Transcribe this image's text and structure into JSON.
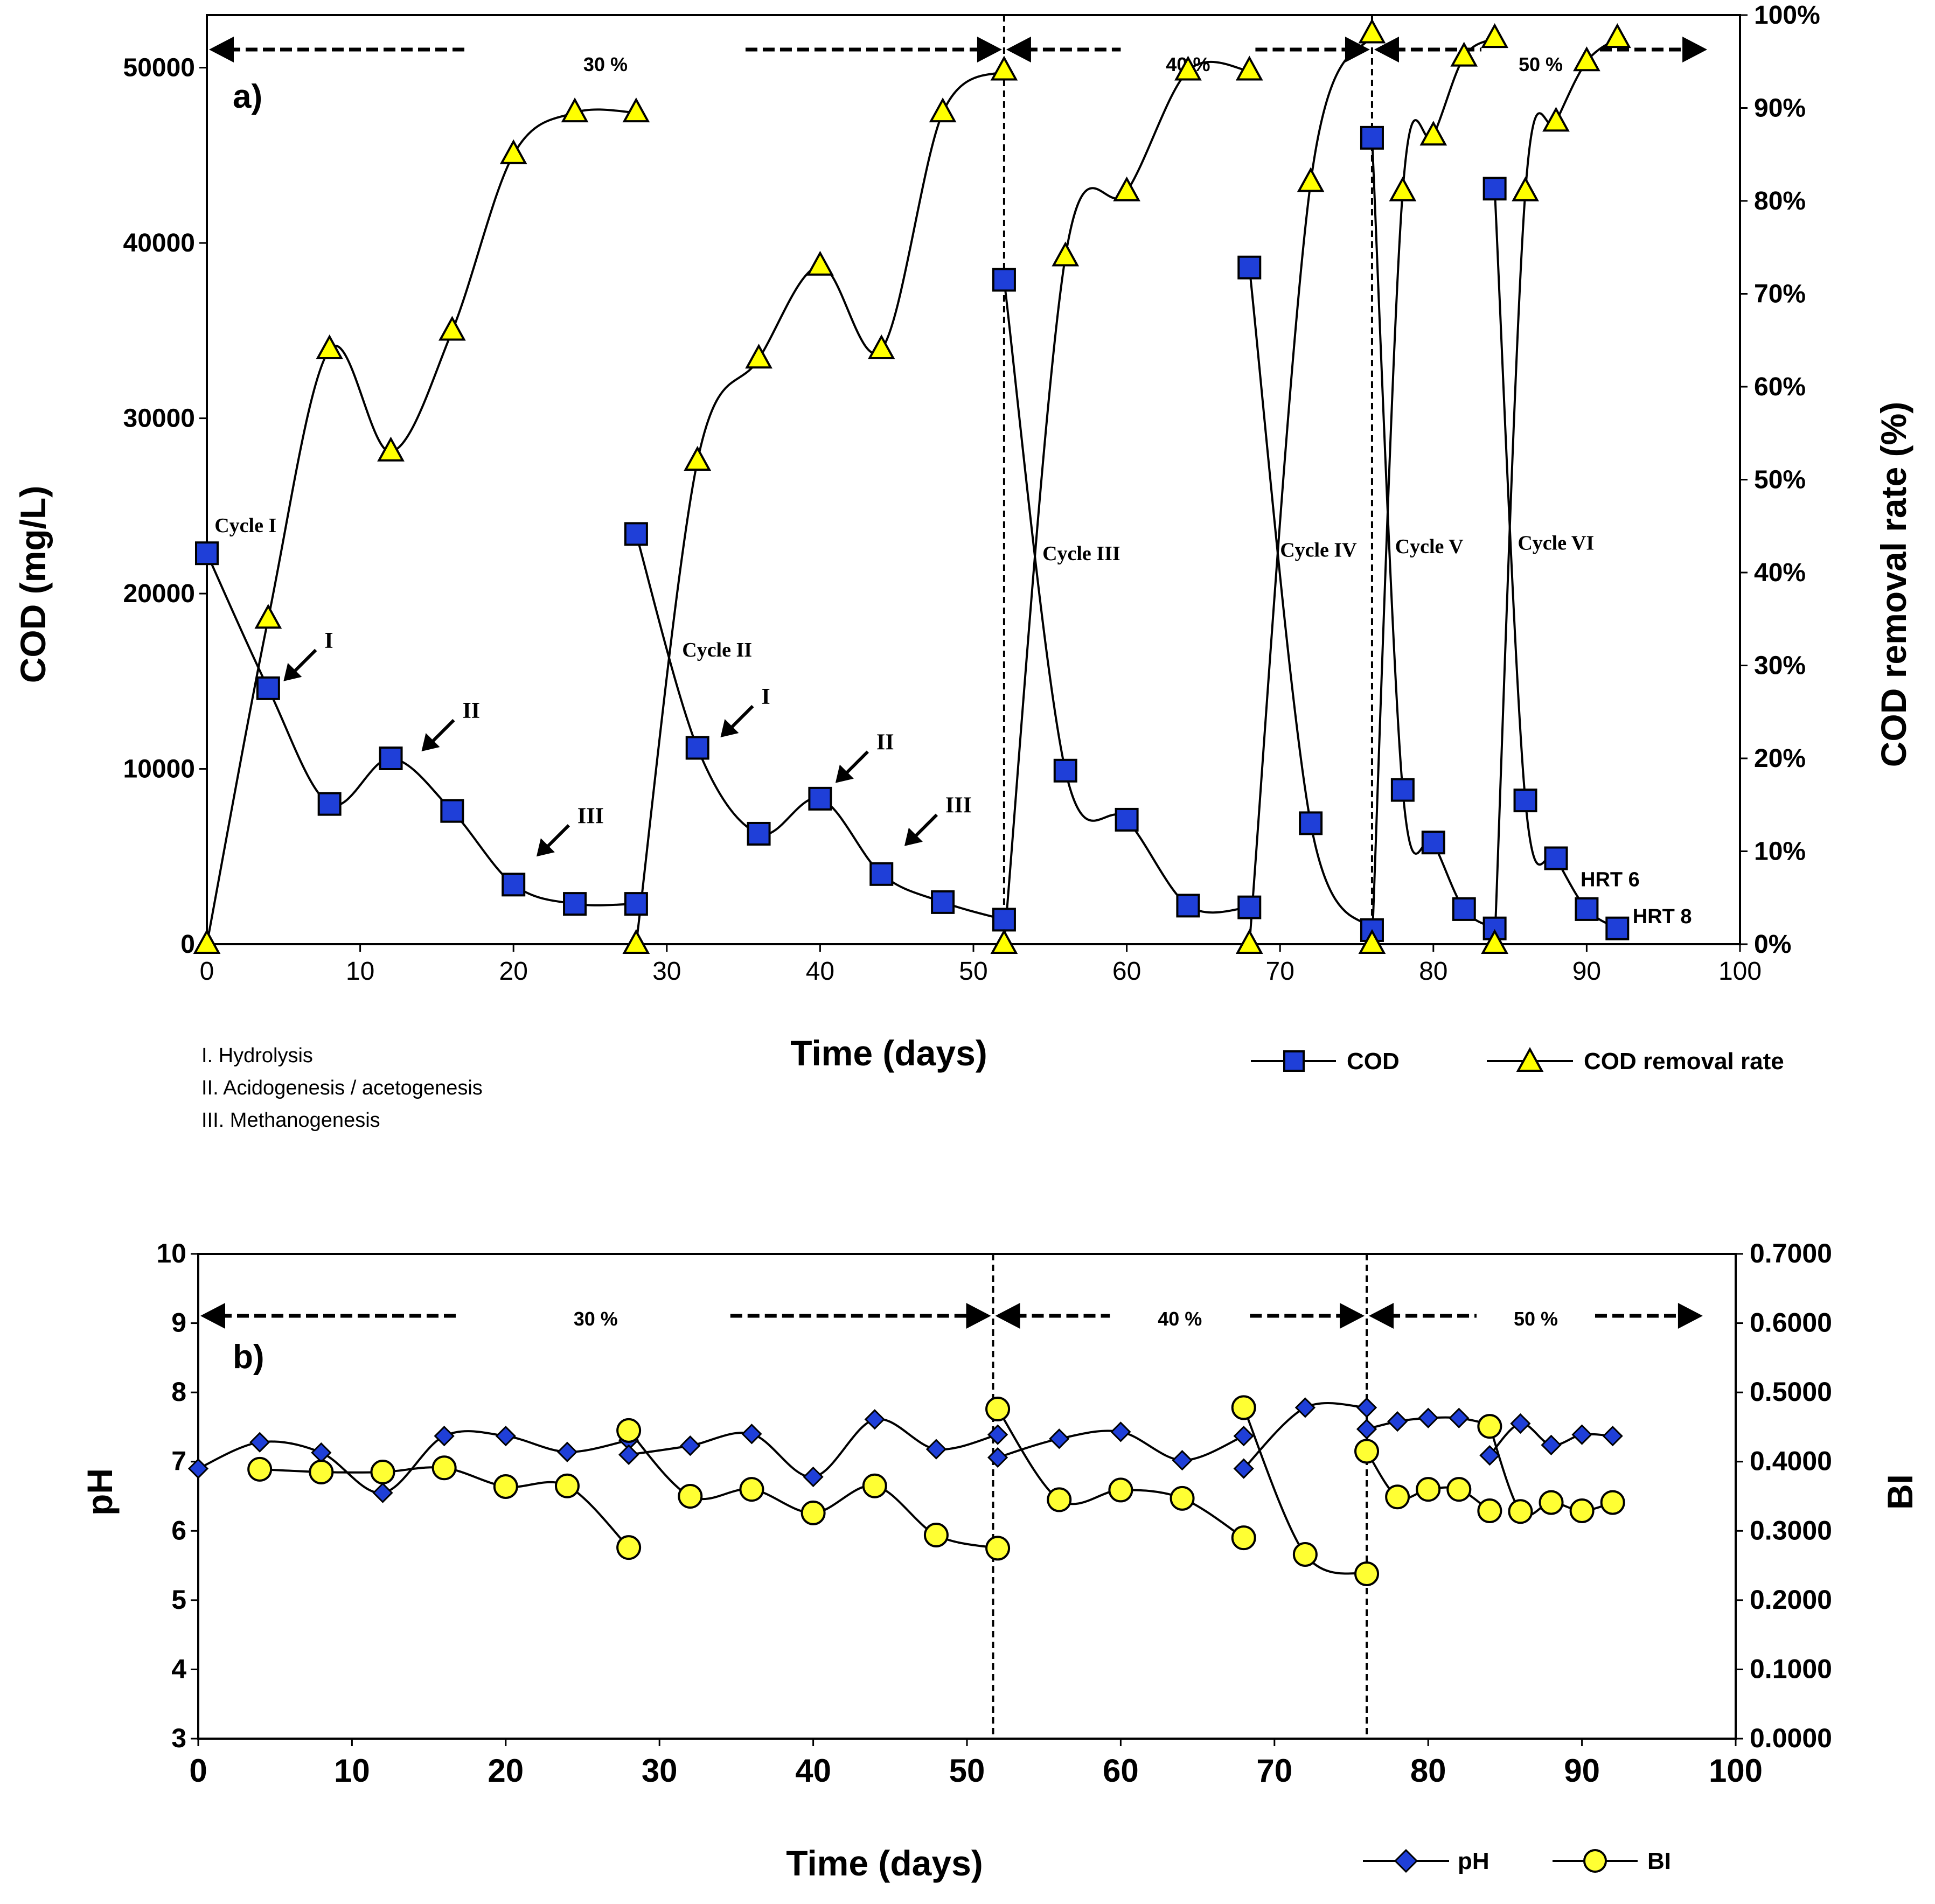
{
  "colors": {
    "cod_fill": "#1f3fd8",
    "removal_fill": "#ffff00",
    "ph_fill": "#1f3fd8",
    "bi_fill": "#ffff33",
    "line": "#000000",
    "background": "#ffffff"
  },
  "chart_data": [
    {
      "type": "line",
      "panel_label": "a)",
      "xlabel": "Time (days)",
      "ylabel": "COD (mg/L)",
      "y2label": "COD removal rate (%)",
      "xlim": [
        0,
        100
      ],
      "ylim": [
        0,
        53000
      ],
      "y2lim": [
        0,
        1.0
      ],
      "x_ticks": [
        "0",
        "10",
        "20",
        "30",
        "40",
        "50",
        "60",
        "70",
        "80",
        "90",
        "100"
      ],
      "y_ticks": [
        "0",
        "10000",
        "20000",
        "30000",
        "40000",
        "50000"
      ],
      "y2_ticks": [
        "0%",
        "10%",
        "20%",
        "30%",
        "40%",
        "50%",
        "60%",
        "70%",
        "80%",
        "90%",
        "100%"
      ],
      "series": [
        {
          "name": "COD",
          "marker": "square",
          "segments": [
            [
              [
                0,
                22300
              ],
              [
                4,
                14600
              ],
              [
                8,
                8000
              ],
              [
                12,
                10600
              ],
              [
                16,
                7600
              ],
              [
                20,
                3400
              ],
              [
                24,
                2300
              ],
              [
                28,
                2300
              ]
            ],
            [
              [
                28,
                23400
              ],
              [
                32,
                11200
              ],
              [
                36,
                6300
              ],
              [
                40,
                8300
              ],
              [
                44,
                4000
              ],
              [
                48,
                2400
              ],
              [
                52,
                1400
              ]
            ],
            [
              [
                52,
                37900
              ],
              [
                56,
                9900
              ],
              [
                60,
                7100
              ],
              [
                64,
                2200
              ],
              [
                68,
                2100
              ]
            ],
            [
              [
                68,
                38600
              ],
              [
                72,
                6900
              ],
              [
                76,
                800
              ]
            ],
            [
              [
                76,
                46000
              ],
              [
                78,
                8800
              ],
              [
                80,
                5800
              ],
              [
                82,
                2000
              ],
              [
                84,
                900
              ]
            ],
            [
              [
                84,
                43100
              ],
              [
                86,
                8200
              ],
              [
                88,
                4900
              ],
              [
                90,
                2000
              ],
              [
                92,
                900
              ]
            ]
          ]
        },
        {
          "name": "COD removal rate",
          "marker": "triangle",
          "segments": [
            [
              [
                0,
                0.0
              ],
              [
                4,
                0.35
              ],
              [
                8,
                0.64
              ],
              [
                12,
                0.53
              ],
              [
                16,
                0.66
              ],
              [
                20,
                0.85
              ],
              [
                24,
                0.895
              ],
              [
                28,
                0.895
              ]
            ],
            [
              [
                28,
                0.0
              ],
              [
                32,
                0.52
              ],
              [
                36,
                0.63
              ],
              [
                40,
                0.73
              ],
              [
                44,
                0.64
              ],
              [
                48,
                0.895
              ],
              [
                52,
                0.94
              ]
            ],
            [
              [
                52,
                0.0
              ],
              [
                56,
                0.74
              ],
              [
                60,
                0.81
              ],
              [
                64,
                0.94
              ],
              [
                68,
                0.94
              ]
            ],
            [
              [
                68,
                0.0
              ],
              [
                72,
                0.82
              ],
              [
                76,
                0.98
              ]
            ],
            [
              [
                76,
                0.0
              ],
              [
                78,
                0.81
              ],
              [
                80,
                0.87
              ],
              [
                82,
                0.955
              ],
              [
                84,
                0.975
              ]
            ],
            [
              [
                84,
                0.0
              ],
              [
                86,
                0.81
              ],
              [
                88,
                0.885
              ],
              [
                90,
                0.95
              ],
              [
                92,
                0.975
              ]
            ]
          ]
        }
      ],
      "legend": [
        "COD",
        "COD removal rate"
      ],
      "periods": [
        "30 %",
        "40 %",
        "50 %"
      ],
      "cycle_labels": [
        {
          "text": "Cycle I",
          "x": 0.5,
          "y": 23500
        },
        {
          "text": "Cycle II",
          "x": 31,
          "y": 16400
        },
        {
          "text": "Cycle III",
          "x": 54.5,
          "y": 21900
        },
        {
          "text": "Cycle IV",
          "x": 70,
          "y": 22100
        },
        {
          "text": "Cycle V",
          "x": 77.5,
          "y": 22300
        },
        {
          "text": "Cycle VI",
          "x": 85.5,
          "y": 22500
        }
      ],
      "phase_arrows": [
        {
          "text": "I",
          "x": 5,
          "y": 15000
        },
        {
          "text": "II",
          "x": 14,
          "y": 11000
        },
        {
          "text": "III",
          "x": 21.5,
          "y": 5000
        },
        {
          "text": "I",
          "x": 33.5,
          "y": 11800
        },
        {
          "text": "II",
          "x": 41,
          "y": 9200
        },
        {
          "text": "III",
          "x": 45.5,
          "y": 5600
        }
      ],
      "hrt_labels": [
        {
          "text": "HRT 6",
          "x": 89.6,
          "y": 3300
        },
        {
          "text": "HRT 8",
          "x": 93,
          "y": 1200
        }
      ],
      "phase_notes": [
        "I. Hydrolysis",
        "II. Acidogenesis / acetogenesis",
        "III. Methanogenesis"
      ]
    },
    {
      "type": "line",
      "panel_label": "b)",
      "xlabel": "Time (days)",
      "ylabel": "pH",
      "y2label": "BI",
      "xlim": [
        0,
        100
      ],
      "ylim": [
        3,
        10
      ],
      "y2lim": [
        0,
        0.7
      ],
      "x_ticks": [
        "0",
        "10",
        "20",
        "30",
        "40",
        "50",
        "60",
        "70",
        "80",
        "90",
        "100"
      ],
      "y_ticks": [
        "3",
        "4",
        "5",
        "6",
        "7",
        "8",
        "9",
        "10"
      ],
      "y2_ticks": [
        "0.0000",
        "0.1000",
        "0.2000",
        "0.3000",
        "0.4000",
        "0.5000",
        "0.6000",
        "0.7000"
      ],
      "series": [
        {
          "name": "pH",
          "marker": "diamond",
          "segments": [
            [
              [
                0,
                6.9
              ],
              [
                4,
                7.28
              ],
              [
                8,
                7.13
              ],
              [
                12,
                6.55
              ],
              [
                16,
                7.37
              ],
              [
                20,
                7.37
              ],
              [
                24,
                7.14
              ],
              [
                28,
                7.31
              ]
            ],
            [
              [
                28,
                7.1
              ],
              [
                32,
                7.23
              ],
              [
                36,
                7.4
              ],
              [
                40,
                6.78
              ],
              [
                44,
                7.61
              ],
              [
                48,
                7.18
              ],
              [
                52,
                7.39
              ]
            ],
            [
              [
                52,
                7.06
              ],
              [
                56,
                7.33
              ],
              [
                60,
                7.43
              ],
              [
                64,
                7.02
              ],
              [
                68,
                7.37
              ]
            ],
            [
              [
                68,
                6.9
              ],
              [
                72,
                7.78
              ],
              [
                76,
                7.78
              ]
            ],
            [
              [
                76,
                7.47
              ],
              [
                78,
                7.58
              ],
              [
                80,
                7.63
              ],
              [
                82,
                7.63
              ],
              [
                84,
                7.54
              ]
            ],
            [
              [
                84,
                7.09
              ],
              [
                86,
                7.55
              ],
              [
                88,
                7.24
              ],
              [
                90,
                7.39
              ],
              [
                92,
                7.37
              ]
            ]
          ]
        },
        {
          "name": "BI",
          "marker": "circle",
          "segments": [
            [
              [
                4,
                0.389
              ],
              [
                8,
                0.385
              ],
              [
                12,
                0.385
              ],
              [
                16,
                0.391
              ],
              [
                20,
                0.364
              ],
              [
                24,
                0.365
              ],
              [
                28,
                0.276
              ]
            ],
            [
              [
                28,
                0.445
              ],
              [
                32,
                0.35
              ],
              [
                36,
                0.36
              ],
              [
                40,
                0.326
              ],
              [
                44,
                0.365
              ],
              [
                48,
                0.294
              ],
              [
                52,
                0.275
              ]
            ],
            [
              [
                52,
                0.476
              ],
              [
                56,
                0.345
              ],
              [
                60,
                0.359
              ],
              [
                64,
                0.347
              ],
              [
                68,
                0.29
              ]
            ],
            [
              [
                68,
                0.478
              ],
              [
                72,
                0.266
              ],
              [
                76,
                0.238
              ]
            ],
            [
              [
                76,
                0.415
              ],
              [
                78,
                0.349
              ],
              [
                80,
                0.36
              ],
              [
                82,
                0.36
              ],
              [
                84,
                0.329
              ]
            ],
            [
              [
                84,
                0.451
              ],
              [
                86,
                0.328
              ],
              [
                88,
                0.341
              ],
              [
                90,
                0.329
              ],
              [
                92,
                0.341
              ]
            ]
          ]
        }
      ],
      "legend": [
        "pH",
        "BI"
      ],
      "periods": [
        "30 %",
        "40 %",
        "50 %"
      ]
    }
  ]
}
